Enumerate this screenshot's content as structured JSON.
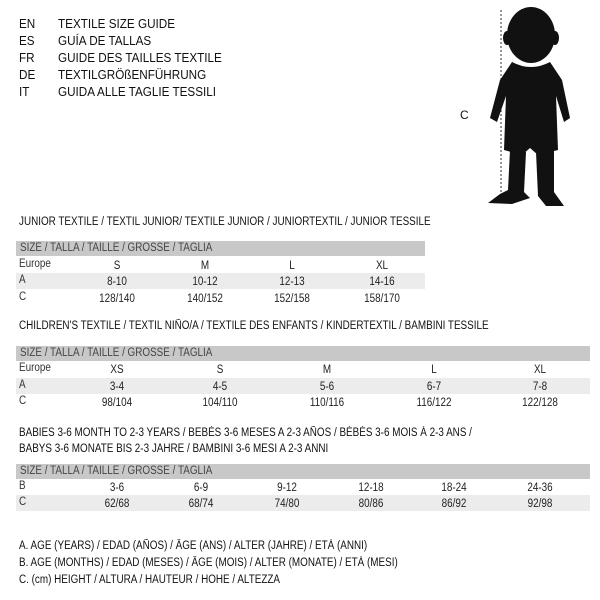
{
  "header": {
    "languages": [
      {
        "code": "EN",
        "text": "TEXTILE SIZE GUIDE"
      },
      {
        "code": "ES",
        "text": "GUÍA DE TALLAS"
      },
      {
        "code": "FR",
        "text": "GUIDE DES TAILLES TEXTILE"
      },
      {
        "code": "DE",
        "text": "TEXTILGRÖßENFÜHRUNG"
      },
      {
        "code": "IT",
        "text": "GUIDA ALLE TAGLIE TESSILI"
      }
    ],
    "figure_label": "C",
    "icon": "child-silhouette-icon"
  },
  "size_header": "SIZE / TALLA / TAILLE / GRÖSSE / TAGLIA",
  "tables": [
    {
      "title": "JUNIOR TEXTILE / TEXTIL JUNIOR/ TEXTILE JUNIOR / JUNIORTEXTIL / JUNIOR TESSILE",
      "rows": [
        {
          "label": "Europe",
          "values": [
            "S",
            "M",
            "L",
            "XL"
          ]
        },
        {
          "label": "A",
          "values": [
            "8-10",
            "10-12",
            "12-13",
            "14-16"
          ]
        },
        {
          "label": "C",
          "values": [
            "128/140",
            "140/152",
            "152/158",
            "158/170"
          ]
        }
      ]
    },
    {
      "title": "CHILDREN'S TEXTILE / TEXTIL NIÑO/A / TEXTILE DES ENFANTS / KINDERTEXTIL / BAMBINI TESSILE",
      "rows": [
        {
          "label": "Europe",
          "values": [
            "XS",
            "S",
            "M",
            "L",
            "XL"
          ]
        },
        {
          "label": "A",
          "values": [
            "3-4",
            "4-5",
            "5-6",
            "6-7",
            "7-8"
          ]
        },
        {
          "label": "C",
          "values": [
            "98/104",
            "104/110",
            "110/116",
            "116/122",
            "122/128"
          ]
        }
      ]
    },
    {
      "title": "BABIES 3-6 MONTH TO 2-3 YEARS / BEBÉS 3-6 MESES A 2-3 AÑOS / BÉBÉS 3-6 MOIS À 2-3 ANS /",
      "title2": "BABYS 3-6 MONATE BIS 2-3 JAHRE / BAMBINI 3-6 MESI A 2-3 ANNI",
      "rows": [
        {
          "label": "B",
          "values": [
            "3-6",
            "6-9",
            "9-12",
            "12-18",
            "18-24",
            "24-36"
          ]
        },
        {
          "label": "C",
          "values": [
            "62/68",
            "68/74",
            "74/80",
            "80/86",
            "86/92",
            "92/98"
          ]
        }
      ]
    }
  ],
  "legend": [
    "A. AGE (YEARS) / EDAD (AÑOS) / ÂGE (ANS) / ALTER (JAHRE) / ETÀ (ANNI)",
    "B. AGE (MONTHS) / EDAD (MESES) / ÂGE (MOIS) / ALTER (MONATE) / ETÀ (MESI)",
    "C. (cm) HEIGHT / ALTURA / HAUTEUR / HÖHE / ALTEZZA"
  ]
}
